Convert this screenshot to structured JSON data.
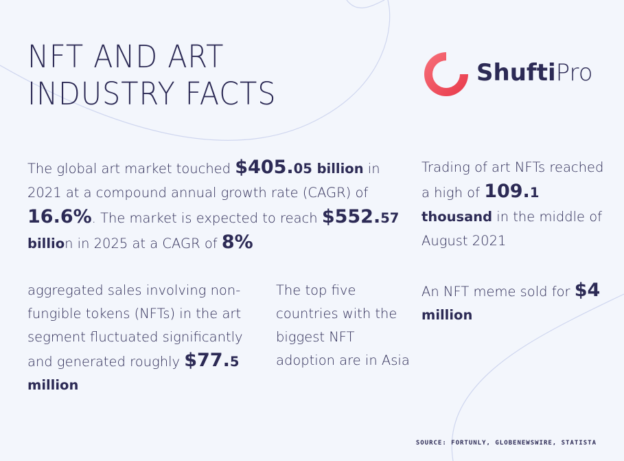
{
  "title": {
    "line1": "NFT AND ART",
    "line2": "INDUSTRY FACTS"
  },
  "logo": {
    "icon": "ring-logo-icon",
    "brand_bold": "Shufti",
    "brand_light": "Pro",
    "accent": "#f2525f"
  },
  "facts": {
    "global_market": {
      "t1": "The global art market touched ",
      "v1_big": "$405.",
      "v1_small": "05 billion",
      "t2": " in 2021 at a compound annual growth rate (CAGR) of ",
      "v2_big": "16.6%",
      "t3": ". The market is expected to reach ",
      "v3_big": "$552.",
      "v3_small": "57 billio",
      "t4": "n in 2025 at a CAGR of ",
      "v4_big": "8%"
    },
    "trading": {
      "t1": "Trading of art NFTs reached a high of ",
      "v_big": "109.",
      "v_small": "1 thousand",
      "t2": " in the middle of August 2021"
    },
    "aggregated_sales": {
      "t1": "aggregated sales involving non-fungible tokens (NFTs) in the art segment fluctuated significantly and generated roughly ",
      "v_big": "$77.",
      "v_small": "5 million"
    },
    "top_countries": {
      "t1": "The top five countries with the biggest NFT adoption are in Asia"
    },
    "meme": {
      "t1": "An NFT meme sold for ",
      "v_big": "$4",
      "v_small": " million"
    }
  },
  "source": "SOURCE: FORTUNLY, GLOBENEWSWIRE, STATISTA",
  "colors": {
    "background": "#f3f6fc",
    "text": "#2c2a55",
    "curve": "#cfd6ef"
  }
}
